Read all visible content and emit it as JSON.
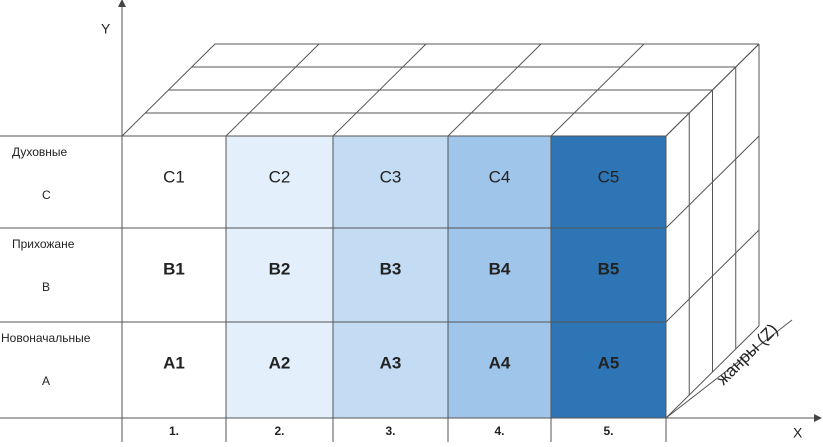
{
  "axes": {
    "y": "Y",
    "x": "X",
    "z": "жанры (Z)"
  },
  "rows": [
    {
      "name": "Духовные",
      "letter": "C",
      "cells": [
        "C1",
        "C2",
        "C3",
        "C4",
        "C5"
      ]
    },
    {
      "name": "Прихожане",
      "letter": "B",
      "cells": [
        "B1",
        "B2",
        "B3",
        "B4",
        "B5"
      ]
    },
    {
      "name": "Новоначальные",
      "letter": "A",
      "cells": [
        "A1",
        "A2",
        "A3",
        "A4",
        "A5"
      ]
    }
  ],
  "columns": [
    "1.",
    "2.",
    "3.",
    "4.",
    "5."
  ]
}
